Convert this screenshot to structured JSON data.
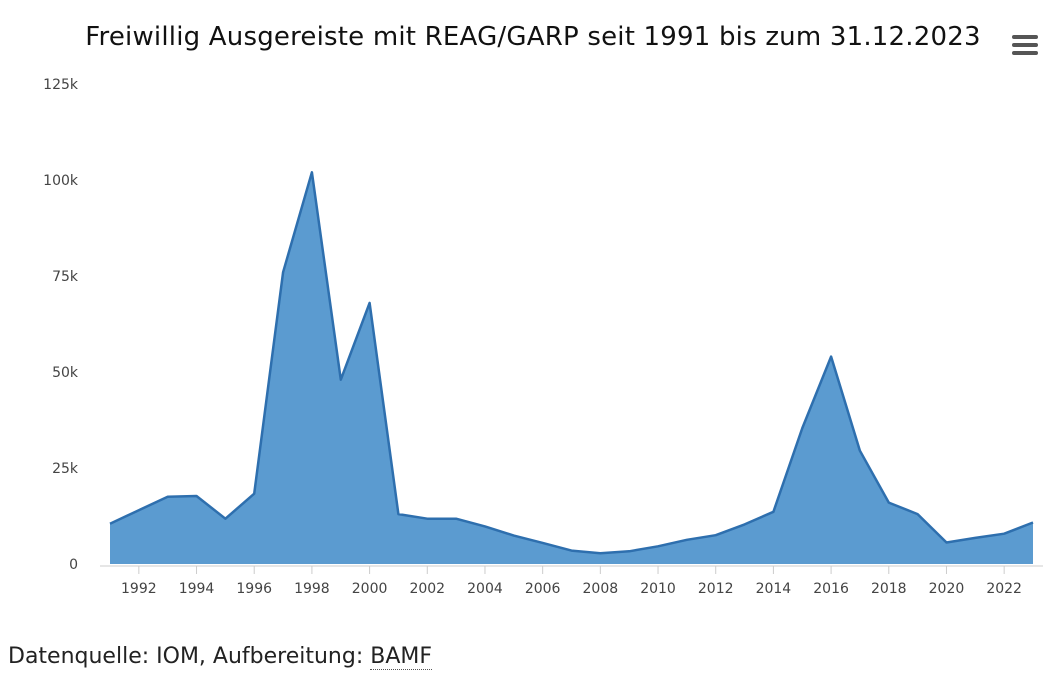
{
  "header": {
    "menu_icon": "hamburger-menu-icon"
  },
  "footer": {
    "source_prefix": "Datenquelle: IOM, Aufbereitung: ",
    "source_link": "BAMF"
  },
  "colors": {
    "area_fill": "#5b9bd0",
    "area_stroke": "#2e6fae",
    "axis": "#cccccc"
  },
  "chart_data": {
    "type": "area",
    "title": "Freiwillig Ausgereiste mit REAG/GARP seit 1991 bis zum 31.12.2023",
    "xlabel": "",
    "ylabel": "",
    "ylim": [
      0,
      125000
    ],
    "grid": false,
    "yticks": [
      {
        "value": 0,
        "label": "0"
      },
      {
        "value": 25000,
        "label": "25k"
      },
      {
        "value": 50000,
        "label": "50k"
      },
      {
        "value": 75000,
        "label": "75k"
      },
      {
        "value": 100000,
        "label": "100k"
      },
      {
        "value": 125000,
        "label": "125k"
      }
    ],
    "xticks": [
      "1992",
      "1994",
      "1996",
      "1998",
      "2000",
      "2002",
      "2004",
      "2006",
      "2008",
      "2010",
      "2012",
      "2014",
      "2016",
      "2018",
      "2020",
      "2022"
    ],
    "x": [
      1991,
      1992,
      1993,
      1994,
      1995,
      1996,
      1997,
      1998,
      1999,
      2000,
      2001,
      2002,
      2003,
      2004,
      2005,
      2006,
      2007,
      2008,
      2009,
      2010,
      2011,
      2012,
      2013,
      2014,
      2015,
      2016,
      2017,
      2018,
      2019,
      2020,
      2021,
      2022,
      2023
    ],
    "values": [
      10500,
      14000,
      17500,
      17700,
      11800,
      18300,
      76000,
      102000,
      48000,
      68000,
      13000,
      11800,
      11800,
      9800,
      7400,
      5500,
      3500,
      2800,
      3300,
      4600,
      6300,
      7500,
      10300,
      13600,
      35400,
      54000,
      29500,
      16000,
      13000,
      5600,
      6800,
      7900,
      10800
    ]
  }
}
